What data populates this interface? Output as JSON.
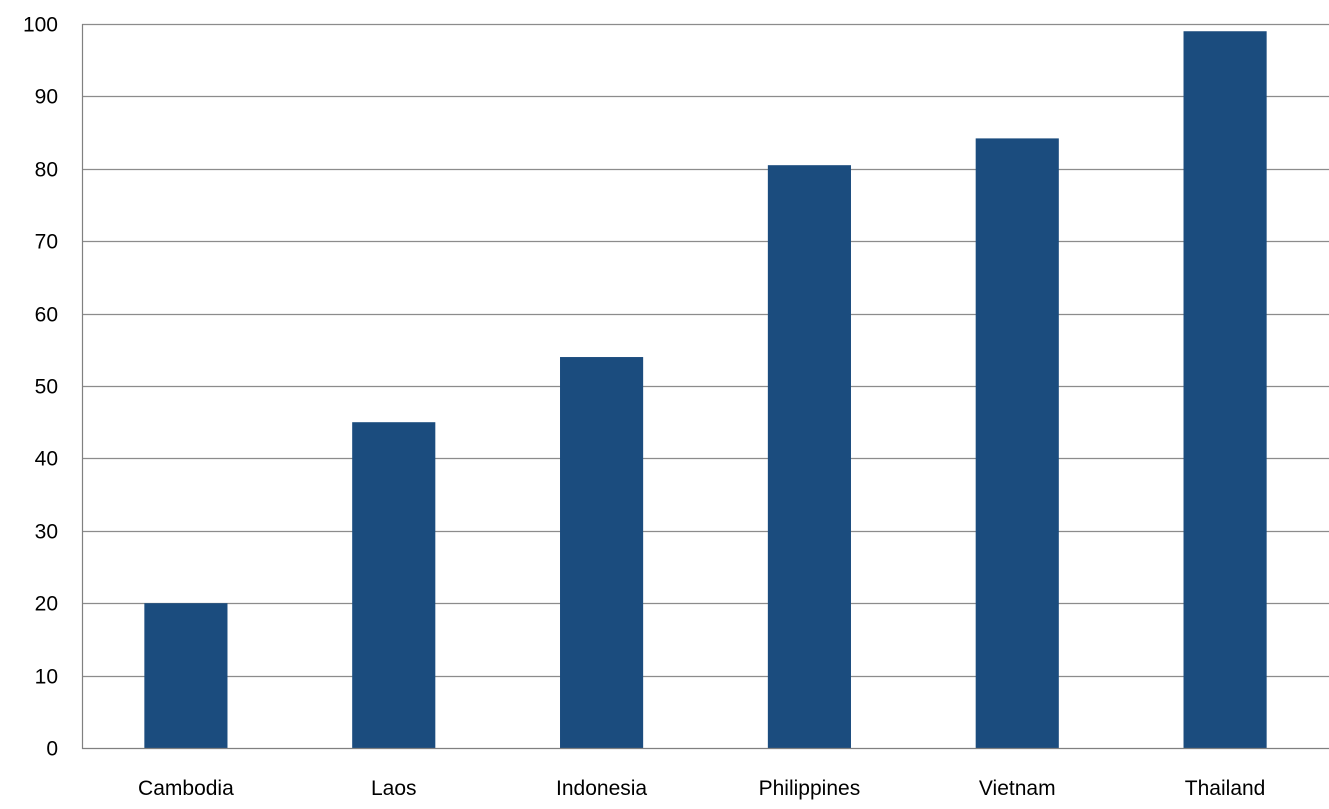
{
  "colors": {
    "bar": "#1B4C7E",
    "gridline": "#8C8C8C",
    "axis": "#808080",
    "text": "#000000"
  },
  "chart_data": {
    "type": "bar",
    "title": "",
    "xlabel": "",
    "ylabel": "",
    "categories": [
      "Cambodia",
      "Laos",
      "Indonesia",
      "Philippines",
      "Vietnam",
      "Thailand"
    ],
    "values": [
      20,
      45,
      54,
      80.5,
      84.2,
      99
    ],
    "ylim": [
      0,
      100
    ],
    "yticks": [
      0,
      10,
      20,
      30,
      40,
      50,
      60,
      70,
      80,
      90,
      100
    ],
    "grid": true,
    "legend": "none"
  }
}
